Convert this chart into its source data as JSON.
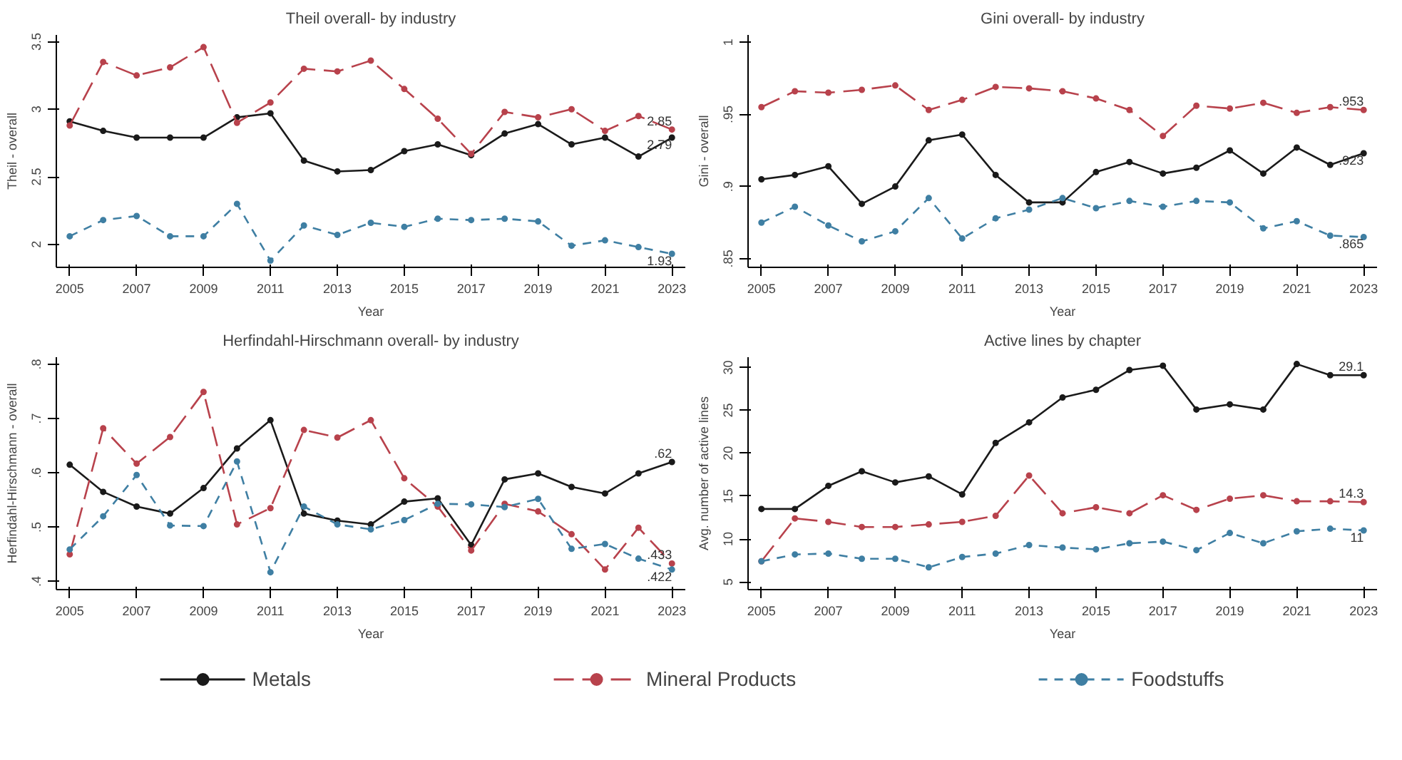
{
  "chart_data": [
    {
      "type": "line",
      "title": "Theil overall- by industry",
      "xlabel": "Year",
      "ylabel": "Theil - overall",
      "x": [
        2005,
        2006,
        2007,
        2008,
        2009,
        2010,
        2011,
        2012,
        2013,
        2014,
        2015,
        2016,
        2017,
        2018,
        2019,
        2020,
        2021,
        2022,
        2023
      ],
      "xlim": [
        2004.6,
        2023.4
      ],
      "xticks": [
        2005,
        2007,
        2009,
        2011,
        2013,
        2015,
        2017,
        2019,
        2021,
        2023
      ],
      "ylim": [
        1.83,
        3.55
      ],
      "yticks": [
        2,
        2.5,
        3,
        3.5
      ],
      "grid": false,
      "marker": "circle",
      "legend": "bottom",
      "series": [
        {
          "name": "Metals",
          "color": "#1a1a1a",
          "line_style": "solid",
          "values": [
            2.91,
            2.84,
            2.79,
            2.79,
            2.79,
            2.94,
            2.97,
            2.62,
            2.54,
            2.55,
            2.69,
            2.74,
            2.66,
            2.82,
            2.89,
            2.74,
            2.79,
            2.65,
            2.79
          ],
          "value_labels": [
            null,
            null,
            null,
            null,
            null,
            null,
            null,
            null,
            null,
            null,
            null,
            null,
            null,
            null,
            null,
            null,
            null,
            null,
            "2.79"
          ]
        },
        {
          "name": "Mineral Products",
          "color": "#b8424c",
          "line_style": "dashed",
          "values": [
            2.88,
            3.35,
            3.25,
            3.31,
            3.46,
            2.9,
            3.05,
            3.3,
            3.28,
            3.36,
            3.15,
            2.93,
            2.67,
            2.98,
            2.94,
            3.0,
            2.84,
            2.95,
            2.85
          ],
          "value_labels": [
            null,
            null,
            null,
            null,
            null,
            null,
            null,
            null,
            null,
            null,
            null,
            null,
            null,
            null,
            null,
            null,
            null,
            null,
            "2.85"
          ]
        },
        {
          "name": "Foodstuffs",
          "color": "#3f7fa3",
          "line_style": "dashed",
          "values": [
            2.06,
            2.18,
            2.21,
            2.06,
            2.06,
            2.3,
            1.88,
            2.14,
            2.07,
            2.16,
            2.13,
            2.19,
            2.18,
            2.19,
            2.17,
            1.99,
            2.03,
            1.98,
            1.93
          ],
          "value_labels": [
            null,
            null,
            null,
            null,
            null,
            null,
            null,
            null,
            null,
            null,
            null,
            null,
            null,
            null,
            null,
            null,
            null,
            null,
            "1.93"
          ]
        }
      ]
    },
    {
      "type": "line",
      "title": "Gini overall- by industry",
      "xlabel": "Year",
      "ylabel": "Gini - overall",
      "x": [
        2005,
        2006,
        2007,
        2008,
        2009,
        2010,
        2011,
        2012,
        2013,
        2014,
        2015,
        2016,
        2017,
        2018,
        2019,
        2020,
        2021,
        2022,
        2023
      ],
      "xlim": [
        2004.6,
        2023.4
      ],
      "xticks": [
        2005,
        2007,
        2009,
        2011,
        2013,
        2015,
        2017,
        2019,
        2021,
        2023
      ],
      "ylim": [
        0.844,
        1.005
      ],
      "yticks": [
        {
          "value": 0.85,
          "label": ".85"
        },
        {
          "value": 0.9,
          "label": ".9"
        },
        {
          "value": 0.95,
          "label": ".95"
        },
        1
      ],
      "grid": false,
      "marker": "circle",
      "series": [
        {
          "color": "#1a1a1a",
          "line_style": "solid",
          "values": [
            0.905,
            0.908,
            0.914,
            0.888,
            0.9,
            0.932,
            0.936,
            0.908,
            0.889,
            0.889,
            0.91,
            0.917,
            0.909,
            0.913,
            0.925,
            0.909,
            0.927,
            0.915,
            0.923
          ],
          "value_labels": [
            null,
            null,
            null,
            null,
            null,
            null,
            null,
            null,
            null,
            null,
            null,
            null,
            null,
            null,
            null,
            null,
            null,
            null,
            ".923"
          ]
        },
        {
          "color": "#b8424c",
          "line_style": "dashed",
          "values": [
            0.955,
            0.966,
            0.965,
            0.967,
            0.97,
            0.953,
            0.96,
            0.969,
            0.968,
            0.966,
            0.961,
            0.953,
            0.935,
            0.956,
            0.954,
            0.958,
            0.951,
            0.955,
            0.953
          ],
          "value_labels": [
            null,
            null,
            null,
            null,
            null,
            null,
            null,
            null,
            null,
            null,
            null,
            null,
            null,
            null,
            null,
            null,
            null,
            null,
            ".953"
          ]
        },
        {
          "color": "#3f7fa3",
          "line_style": "dashed",
          "values": [
            0.875,
            0.886,
            0.873,
            0.862,
            0.869,
            0.892,
            0.864,
            0.878,
            0.884,
            0.892,
            0.885,
            0.89,
            0.886,
            0.89,
            0.889,
            0.871,
            0.876,
            0.866,
            0.865
          ],
          "value_labels": [
            null,
            null,
            null,
            null,
            null,
            null,
            null,
            null,
            null,
            null,
            null,
            null,
            null,
            null,
            null,
            null,
            null,
            null,
            ".865"
          ]
        }
      ]
    },
    {
      "type": "line",
      "title": "Herfindahl-Hirschmann overall- by industry",
      "xlabel": "Year",
      "ylabel": "Herfindahl-Hirschmann - overall",
      "x": [
        2005,
        2006,
        2007,
        2008,
        2009,
        2010,
        2011,
        2012,
        2013,
        2014,
        2015,
        2016,
        2017,
        2018,
        2019,
        2020,
        2021,
        2022,
        2023
      ],
      "xlim": [
        2004.6,
        2023.4
      ],
      "xticks": [
        2005,
        2007,
        2009,
        2011,
        2013,
        2015,
        2017,
        2019,
        2021,
        2023
      ],
      "ylim": [
        0.385,
        0.813
      ],
      "yticks": [
        {
          "value": 0.4,
          "label": ".4"
        },
        {
          "value": 0.5,
          "label": ".5"
        },
        {
          "value": 0.6,
          "label": ".6"
        },
        {
          "value": 0.7,
          "label": ".7"
        },
        {
          "value": 0.8,
          "label": ".8"
        }
      ],
      "grid": false,
      "marker": "circle",
      "series": [
        {
          "color": "#1a1a1a",
          "line_style": "solid",
          "values": [
            0.615,
            0.565,
            0.538,
            0.525,
            0.572,
            0.645,
            0.697,
            0.525,
            0.512,
            0.505,
            0.547,
            0.553,
            0.467,
            0.588,
            0.599,
            0.574,
            0.562,
            0.599,
            0.62
          ],
          "value_labels": [
            null,
            null,
            null,
            null,
            null,
            null,
            null,
            null,
            null,
            null,
            null,
            null,
            null,
            null,
            null,
            null,
            null,
            null,
            ".62"
          ]
        },
        {
          "color": "#b8424c",
          "line_style": "dashed",
          "values": [
            0.45,
            0.682,
            0.617,
            0.666,
            0.749,
            0.505,
            0.535,
            0.679,
            0.665,
            0.697,
            0.59,
            0.538,
            0.457,
            0.543,
            0.529,
            0.487,
            0.422,
            0.499,
            0.433
          ],
          "value_labels": [
            null,
            null,
            null,
            null,
            null,
            null,
            null,
            null,
            null,
            null,
            null,
            null,
            null,
            null,
            null,
            null,
            null,
            null,
            ".433"
          ]
        },
        {
          "color": "#3f7fa3",
          "line_style": "dashed",
          "values": [
            0.459,
            0.52,
            0.596,
            0.503,
            0.502,
            0.621,
            0.417,
            0.538,
            0.505,
            0.496,
            0.513,
            0.543,
            0.542,
            0.537,
            0.552,
            0.46,
            0.469,
            0.442,
            0.422
          ],
          "value_labels": [
            null,
            null,
            null,
            null,
            null,
            null,
            null,
            null,
            null,
            null,
            null,
            null,
            null,
            null,
            null,
            null,
            null,
            null,
            ".422"
          ]
        }
      ]
    },
    {
      "type": "line",
      "title": "Active lines by chapter",
      "xlabel": "Year",
      "ylabel": "Avg. number of active lines",
      "x": [
        2005,
        2006,
        2007,
        2008,
        2009,
        2010,
        2011,
        2012,
        2013,
        2014,
        2015,
        2016,
        2017,
        2018,
        2019,
        2020,
        2021,
        2022,
        2023
      ],
      "xlim": [
        2004.6,
        2023.4
      ],
      "xticks": [
        2005,
        2007,
        2009,
        2011,
        2013,
        2015,
        2017,
        2019,
        2021,
        2023
      ],
      "ylim": [
        4.1,
        31.2
      ],
      "yticks": [
        5,
        10,
        15,
        20,
        25,
        30
      ],
      "grid": false,
      "marker": "circle",
      "series": [
        {
          "color": "#1a1a1a",
          "line_style": "solid",
          "values": [
            13.5,
            13.5,
            16.2,
            17.9,
            16.6,
            17.3,
            15.2,
            21.2,
            23.6,
            26.5,
            27.4,
            29.7,
            30.2,
            25.1,
            25.7,
            25.1,
            30.4,
            29.1,
            29.1
          ],
          "value_labels": [
            null,
            null,
            null,
            null,
            null,
            null,
            null,
            null,
            null,
            null,
            null,
            null,
            null,
            null,
            null,
            null,
            null,
            null,
            "29.1"
          ]
        },
        {
          "color": "#b8424c",
          "line_style": "dashed",
          "values": [
            7.4,
            12.4,
            12.0,
            11.4,
            11.4,
            11.7,
            12.0,
            12.7,
            17.4,
            13.0,
            13.7,
            13.0,
            15.1,
            13.4,
            14.7,
            15.1,
            14.4,
            14.4,
            14.3
          ],
          "value_labels": [
            null,
            null,
            null,
            null,
            null,
            null,
            null,
            null,
            null,
            null,
            null,
            null,
            null,
            null,
            null,
            null,
            null,
            null,
            "14.3"
          ]
        },
        {
          "color": "#3f7fa3",
          "line_style": "dashed",
          "values": [
            7.4,
            8.2,
            8.3,
            7.7,
            7.7,
            6.7,
            7.9,
            8.3,
            9.3,
            9.0,
            8.8,
            9.5,
            9.7,
            8.7,
            10.7,
            9.5,
            10.9,
            11.2,
            11.0
          ],
          "value_labels": [
            null,
            null,
            null,
            null,
            null,
            null,
            null,
            null,
            null,
            null,
            null,
            null,
            null,
            null,
            null,
            null,
            null,
            null,
            "11"
          ]
        }
      ]
    }
  ]
}
